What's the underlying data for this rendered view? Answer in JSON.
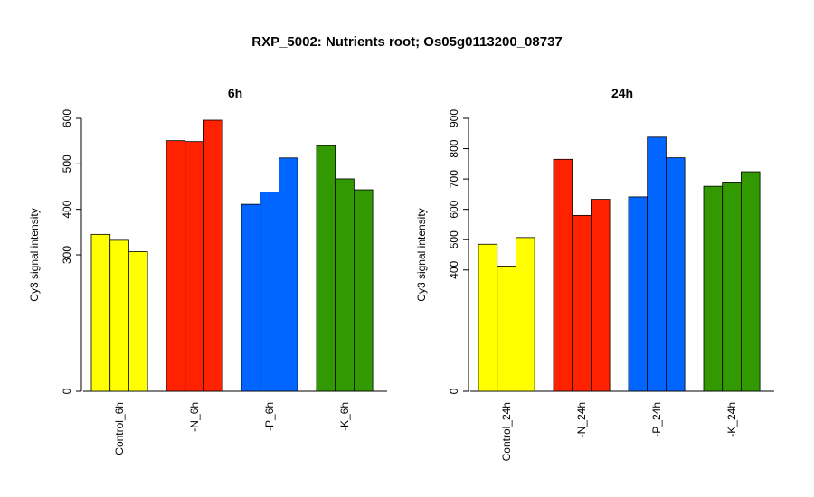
{
  "title": "RXP_5002: Nutrients root; Os05g0113200_08737",
  "colors": {
    "control": "#ffff00",
    "N": "#ff2200",
    "P": "#0066ff",
    "K": "#339900"
  },
  "chart_data": [
    {
      "type": "bar",
      "title": "6h",
      "ylabel": "Cy3 signal intensity",
      "ylim": [
        0,
        600
      ],
      "yticks": [
        0,
        300,
        400,
        500,
        600
      ],
      "categories": [
        "Control_6h",
        "-N_6h",
        "-P_6h",
        "-K_6h"
      ],
      "groups": [
        {
          "label": "Control_6h",
          "color": "#ffff00",
          "values": [
            345,
            332,
            307
          ]
        },
        {
          "label": "-N_6h",
          "color": "#ff2200",
          "values": [
            551,
            549,
            596
          ]
        },
        {
          "label": "-P_6h",
          "color": "#0066ff",
          "values": [
            411,
            438,
            513
          ]
        },
        {
          "label": "-K_6h",
          "color": "#339900",
          "values": [
            540,
            467,
            443
          ]
        }
      ]
    },
    {
      "type": "bar",
      "title": "24h",
      "ylabel": "Cy3 signal intensity",
      "ylim": [
        0,
        900
      ],
      "yticks": [
        0,
        400,
        500,
        600,
        700,
        800,
        900
      ],
      "categories": [
        "Control_24h",
        "-N_24h",
        "-P_24h",
        "-K_24h"
      ],
      "groups": [
        {
          "label": "Control_24h",
          "color": "#ffff00",
          "values": [
            485,
            413,
            507
          ]
        },
        {
          "label": "-N_24h",
          "color": "#ff2200",
          "values": [
            765,
            580,
            633
          ]
        },
        {
          "label": "-P_24h",
          "color": "#0066ff",
          "values": [
            641,
            838,
            770
          ]
        },
        {
          "label": "-K_24h",
          "color": "#339900",
          "values": [
            676,
            690,
            724
          ]
        }
      ]
    }
  ]
}
